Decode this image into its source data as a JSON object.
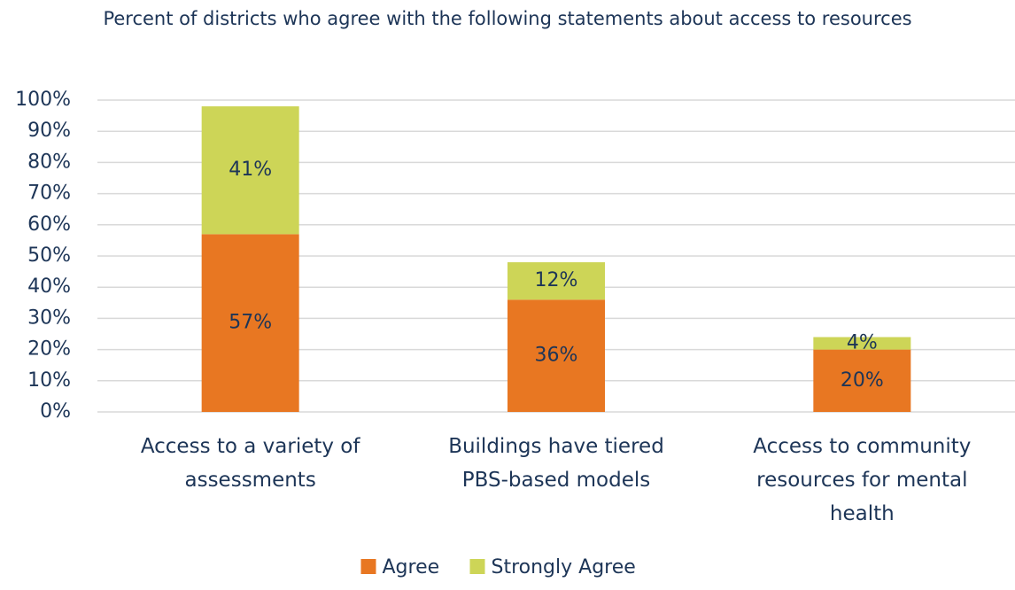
{
  "chart_data": {
    "type": "stacked_bar",
    "title": "Percent of districts who agree with the following statements about access to resources",
    "categories": [
      "Access to a variety of assessments",
      "Buildings have tiered PBS-based models",
      "Access to community resources for mental health"
    ],
    "series": [
      {
        "name": "Agree",
        "color": "#e87722",
        "values": [
          57,
          36,
          20
        ],
        "value_labels": [
          "57%",
          "36%",
          "20%"
        ]
      },
      {
        "name": "Strongly Agree",
        "color": "#cdd557",
        "values": [
          41,
          12,
          4
        ],
        "value_labels": [
          "41%",
          "12%",
          "4%"
        ]
      }
    ],
    "ylim": [
      0,
      100
    ],
    "yticks": [
      {
        "value": 0,
        "label": "0%"
      },
      {
        "value": 10,
        "label": "10%"
      },
      {
        "value": 20,
        "label": "20%"
      },
      {
        "value": 30,
        "label": "30%"
      },
      {
        "value": 40,
        "label": "40%"
      },
      {
        "value": 50,
        "label": "50%"
      },
      {
        "value": 60,
        "label": "60%"
      },
      {
        "value": 70,
        "label": "70%"
      },
      {
        "value": 80,
        "label": "80%"
      },
      {
        "value": 90,
        "label": "90%"
      },
      {
        "value": 100,
        "label": "100%"
      }
    ],
    "grid": true,
    "legend": "bottom"
  }
}
